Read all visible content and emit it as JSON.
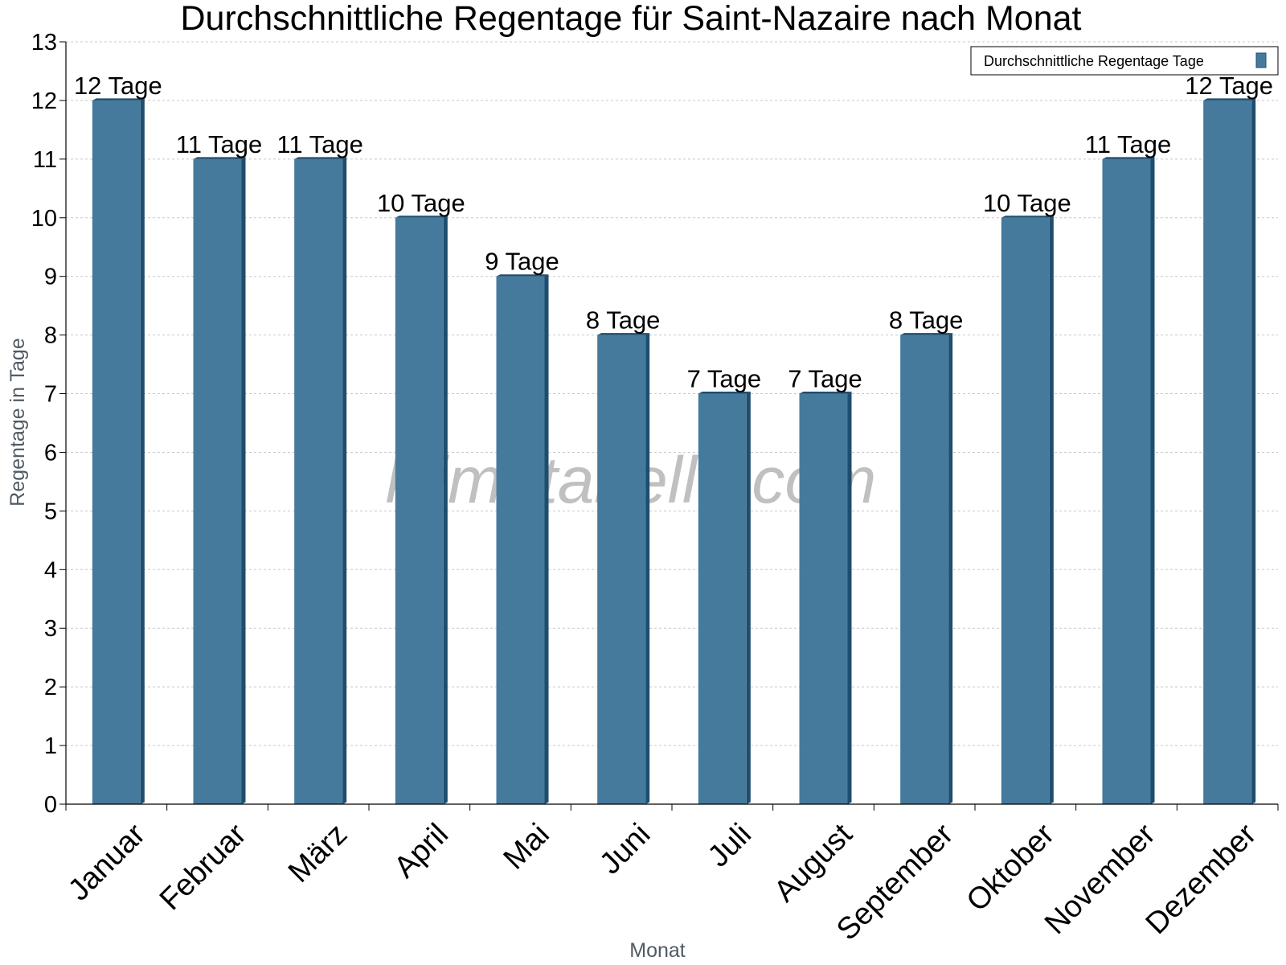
{
  "chart_data": {
    "type": "bar",
    "title": "Durchschnittliche Regentage für Saint-Nazaire nach Monat",
    "xlabel": "Monat",
    "ylabel": "Regentage in Tage",
    "ylim": [
      0,
      13
    ],
    "yticks": [
      0,
      1,
      2,
      3,
      4,
      5,
      6,
      7,
      8,
      9,
      10,
      11,
      12,
      13
    ],
    "grid": true,
    "legend_position": "top-right",
    "categories": [
      "Januar",
      "Februar",
      "März",
      "April",
      "Mai",
      "Juni",
      "Juli",
      "August",
      "September",
      "Oktober",
      "November",
      "Dezember"
    ],
    "series": [
      {
        "name": "Durchschnittliche Regentage Tage",
        "values": [
          12,
          11,
          11,
          10,
          9,
          8,
          7,
          7,
          8,
          10,
          11,
          12
        ],
        "labels": [
          "12 Tage",
          "11 Tage",
          "11 Tage",
          "10 Tage",
          "9 Tage",
          "8 Tage",
          "7 Tage",
          "7 Tage",
          "8 Tage",
          "10 Tage",
          "11 Tage",
          "12 Tage"
        ],
        "color": "#467a9c",
        "side_color": "#1e4d6e"
      }
    ],
    "watermark": "klimatabelle.com"
  }
}
